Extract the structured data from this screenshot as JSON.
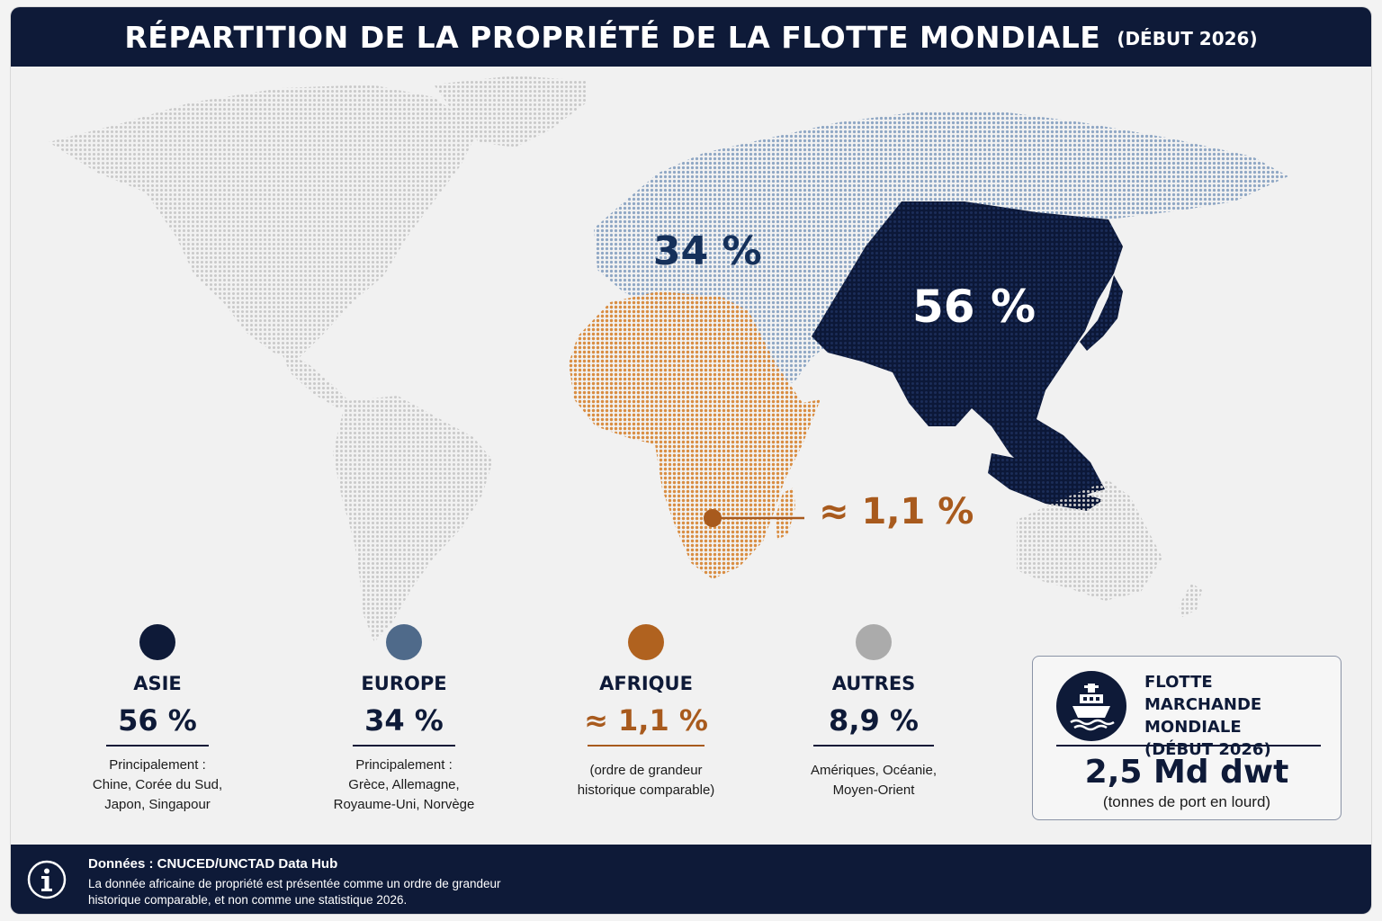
{
  "title": {
    "main": "RÉPARTITION DE LA PROPRIÉTÉ DE LA FLOTTE MONDIALE",
    "sub": "(DÉBUT 2026)"
  },
  "colors": {
    "asia": "#0f1d42",
    "europe": "#8fa7c4",
    "africa": "#d98d42",
    "others": "#c8c8c8",
    "africa_label": "#a85a1d",
    "navy": "#0e1a38"
  },
  "map_labels": {
    "europe": "34 %",
    "asia": "56 %",
    "africa": "≈ 1,1 %"
  },
  "legend": [
    {
      "key": "asia",
      "name": "ASIE",
      "value": "56 %",
      "note_lines": [
        "Principalement :",
        "Chine, Corée du Sud,",
        "Japon, Singapour"
      ],
      "dot_color": "#0e1a38",
      "value_color": "#0e1a38"
    },
    {
      "key": "europe",
      "name": "EUROPE",
      "value": "34 %",
      "note_lines": [
        "Principalement :",
        "Grèce, Allemagne,",
        "Royaume-Uni, Norvège"
      ],
      "dot_color": "#4f6a8a",
      "value_color": "#0e1a38"
    },
    {
      "key": "africa",
      "name": "AFRIQUE",
      "value": "≈ 1,1 %",
      "note_lines": [
        "(ordre de grandeur",
        "historique comparable)"
      ],
      "dot_color": "#b0621f",
      "value_color": "#a85a1d"
    },
    {
      "key": "others",
      "name": "AUTRES",
      "value": "8,9 %",
      "note_lines": [
        "Amériques, Océanie,",
        "Moyen-Orient"
      ],
      "dot_color": "#ababab",
      "value_color": "#0e1a38"
    }
  ],
  "chart_data": {
    "type": "map",
    "unit": "%",
    "categories": [
      "ASIE",
      "EUROPE",
      "AFRIQUE",
      "AUTRES"
    ],
    "values": [
      56,
      34,
      1.1,
      8.9
    ]
  },
  "fleet": {
    "icon": "ship-icon",
    "title_lines": [
      "FLOTTE MARCHANDE",
      "MONDIALE",
      "(DÉBUT 2026)"
    ],
    "value": "2,5 Md dwt",
    "unit": "(tonnes de port en lourd)"
  },
  "footer": {
    "icon": "info-icon",
    "source": "Données : CNUCED/UNCTAD Data Hub",
    "note_lines": [
      "La donnée africaine de propriété est présentée comme un ordre de grandeur",
      "historique comparable, et non comme une statistique 2026."
    ]
  }
}
